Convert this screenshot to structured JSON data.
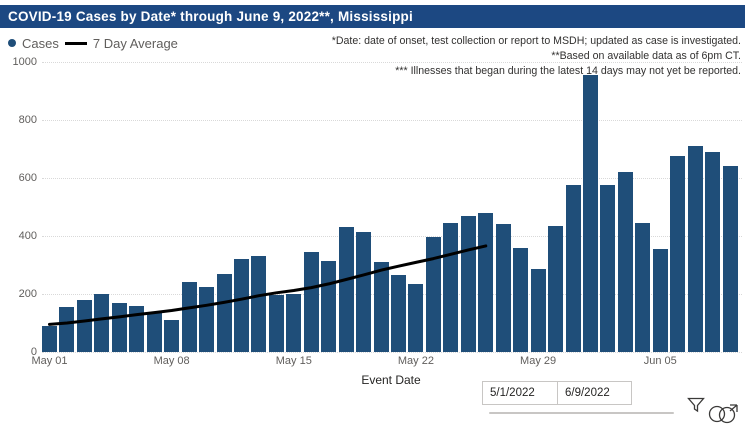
{
  "title": "COVID-19 Cases by Date* through June 9, 2022**, Mississippi",
  "legend": {
    "cases_label": "Cases",
    "avg_label": "7 Day Average"
  },
  "annotations": {
    "line1": "*Date: date of onset, test collection or report to MSDH; updated as case is investigated.",
    "line2": "**Based on available data as of 6pm CT.",
    "line3": "*** Illnesses that began during the latest 14 days may not yet be reported."
  },
  "colors": {
    "title_bg": "#1C4882",
    "bar": "#1F4E79",
    "avg_line": "#000000",
    "axis_text": "#605E5C",
    "annotation_text": "#323130"
  },
  "chart_data": {
    "type": "bar",
    "title": "COVID-19 Cases by Date* through June 9, 2022**, Mississippi",
    "xlabel": "Event Date",
    "ylabel": "",
    "ylim": [
      0,
      1000
    ],
    "yticks": [
      0,
      200,
      400,
      600,
      800,
      1000
    ],
    "grid": "horizontal-dotted",
    "legend_position": "top-left",
    "categories": [
      "May 01",
      "May 02",
      "May 03",
      "May 04",
      "May 05",
      "May 06",
      "May 07",
      "May 08",
      "May 09",
      "May 10",
      "May 11",
      "May 12",
      "May 13",
      "May 14",
      "May 15",
      "May 16",
      "May 17",
      "May 18",
      "May 19",
      "May 20",
      "May 21",
      "May 22",
      "May 23",
      "May 24",
      "May 25",
      "May 26",
      "May 27",
      "May 28",
      "May 29",
      "May 30",
      "May 31",
      "Jun 01",
      "Jun 02",
      "Jun 03",
      "Jun 04",
      "Jun 05",
      "Jun 06",
      "Jun 07",
      "Jun 08",
      "Jun 09"
    ],
    "x_tick_labels": [
      "May 01",
      "May 08",
      "May 15",
      "May 22",
      "May 29",
      "Jun 05"
    ],
    "x_tick_indices": [
      0,
      7,
      14,
      21,
      28,
      35
    ],
    "series": [
      {
        "name": "Cases",
        "type": "bar",
        "values": [
          90,
          155,
          180,
          200,
          170,
          160,
          135,
          110,
          240,
          225,
          270,
          320,
          330,
          195,
          200,
          345,
          315,
          430,
          415,
          310,
          265,
          235,
          395,
          445,
          470,
          480,
          440,
          360,
          285,
          435,
          575,
          955,
          575,
          620,
          445,
          355,
          675,
          710,
          690,
          640
        ]
      },
      {
        "name": "7 Day Average",
        "type": "line",
        "values": [
          95,
          100,
          107,
          114,
          121,
          129,
          136,
          143,
          152,
          161,
          171,
          182,
          194,
          204,
          212,
          222,
          235,
          250,
          266,
          282,
          296,
          309,
          322,
          337,
          352,
          366,
          null,
          null,
          null,
          null,
          null,
          null,
          null,
          null,
          null,
          null,
          null,
          null,
          null,
          null
        ]
      }
    ]
  },
  "slicer": {
    "start_value": "5/1/2022",
    "end_value": "6/9/2022"
  },
  "icons": {
    "filter": "filter-funnel",
    "circles": "overlapping-circles-popout"
  }
}
